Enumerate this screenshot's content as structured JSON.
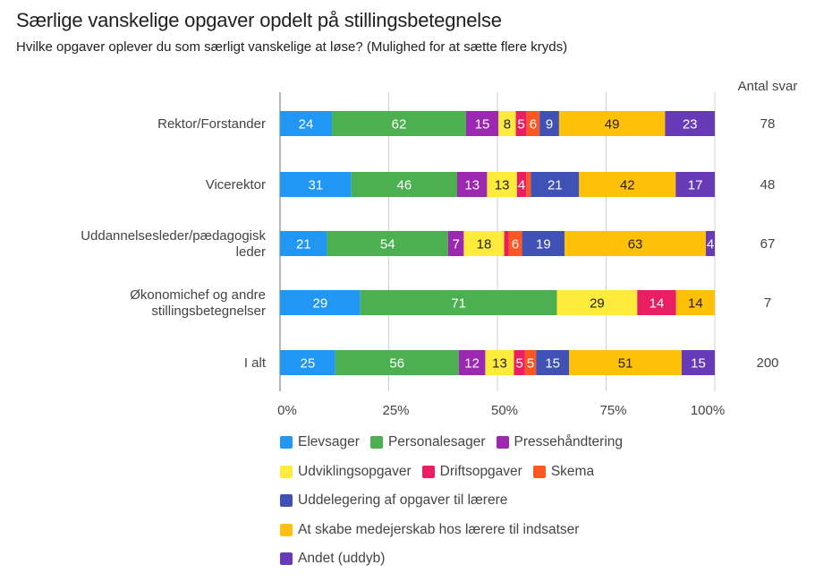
{
  "chart_data": {
    "type": "bar",
    "orientation": "horizontal",
    "stacked": "percent",
    "title": "Særlige vanskelige opgaver opdelt på stillingsbetegnelse",
    "subtitle": "Hvilke opgaver oplever du som særligt vanskelige at løse? (Mulighed for at sætte flere kryds)",
    "xlabel": "",
    "ylabel": "",
    "xlim": [
      0,
      100
    ],
    "x_ticks": [
      "0%",
      "25%",
      "50%",
      "75%",
      "100%"
    ],
    "grid": true,
    "legend_position": "bottom",
    "categories": [
      "Rektor/Forstander",
      "Vicerektor",
      "Uddannelsesleder/pædagogisk leder",
      "Økonomichef og andre stillingsbetegnelser",
      "I alt"
    ],
    "category_lines": [
      [
        "Rektor/Forstander"
      ],
      [
        "Vicerektor"
      ],
      [
        "Uddannelsesleder/pædagogisk",
        "leder"
      ],
      [
        "Økonomichef og andre",
        "stillingsbetegnelser"
      ],
      [
        "I alt"
      ]
    ],
    "series": [
      {
        "name": "Elevsager",
        "color": "#2196f3",
        "label_color": "#ffffff",
        "values": [
          24,
          31,
          21,
          29,
          25
        ]
      },
      {
        "name": "Personalesager",
        "color": "#4caf50",
        "label_color": "#ffffff",
        "values": [
          62,
          46,
          54,
          71,
          56
        ]
      },
      {
        "name": "Pressehåndtering",
        "color": "#9c27b0",
        "label_color": "#ffffff",
        "values": [
          15,
          13,
          7,
          0,
          12
        ]
      },
      {
        "name": "Udviklingsopgaver",
        "color": "#ffeb3b",
        "label_color": "#212121",
        "values": [
          8,
          13,
          18,
          29,
          13
        ]
      },
      {
        "name": "Driftsopgaver",
        "color": "#e91e63",
        "label_color": "#ffffff",
        "values": [
          5,
          4,
          2,
          14,
          5
        ]
      },
      {
        "name": "Skema",
        "color": "#ff5722",
        "label_color": "#ffffff",
        "values": [
          6,
          2,
          6,
          0,
          5
        ]
      },
      {
        "name": "Uddelegering af opgaver til lærere",
        "color": "#3f51b5",
        "label_color": "#ffffff",
        "values": [
          9,
          21,
          19,
          0,
          15
        ]
      },
      {
        "name": "At skabe medejerskab hos lærere til indsatser",
        "color": "#ffc107",
        "label_color": "#212121",
        "values": [
          49,
          42,
          63,
          14,
          51
        ]
      },
      {
        "name": "Andet (uddyb)",
        "color": "#673ab7",
        "label_color": "#ffffff",
        "values": [
          23,
          17,
          4,
          0,
          15
        ]
      }
    ],
    "hidden_labels": [
      [],
      [
        5
      ],
      [
        4
      ],
      [],
      []
    ],
    "right_column": {
      "header": "Antal svar",
      "values": [
        "78",
        "48",
        "67",
        "7",
        "200"
      ]
    }
  },
  "legend_rows": [
    [
      0,
      1,
      2
    ],
    [
      3,
      4,
      5
    ],
    [
      6
    ],
    [
      7
    ],
    [
      8
    ]
  ]
}
